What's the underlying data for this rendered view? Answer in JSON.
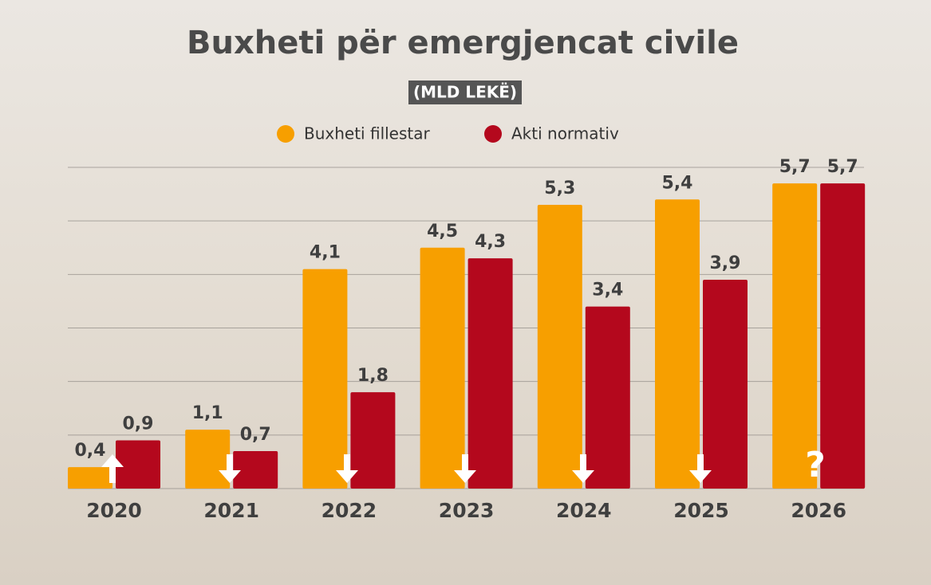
{
  "chart_data": {
    "type": "bar",
    "title": "Buxheti për emergjencat civile",
    "subtitle": "(MLD LEKË)",
    "categories": [
      "2020",
      "2021",
      "2022",
      "2023",
      "2024",
      "2025",
      "2026"
    ],
    "series": [
      {
        "name": "Buxheti fillestar",
        "color": "#f79f00",
        "values": [
          0.4,
          1.1,
          4.1,
          4.5,
          5.3,
          5.4,
          5.7
        ],
        "value_labels": [
          "0,4",
          "1,1",
          "4,1",
          "4,5",
          "5,3",
          "5,4",
          "5,7"
        ]
      },
      {
        "name": "Akti normativ",
        "color": "#b4081d",
        "values": [
          0.9,
          0.7,
          1.8,
          4.3,
          3.4,
          3.9,
          5.7
        ],
        "value_labels": [
          "0,9",
          "0,7",
          "1,8",
          "4,3",
          "3,4",
          "3,9",
          "5,7"
        ]
      }
    ],
    "annotation": "?",
    "ylim": [
      0,
      6
    ],
    "yticks": [
      0,
      1,
      2,
      3,
      4,
      5,
      6
    ],
    "grid": true
  }
}
